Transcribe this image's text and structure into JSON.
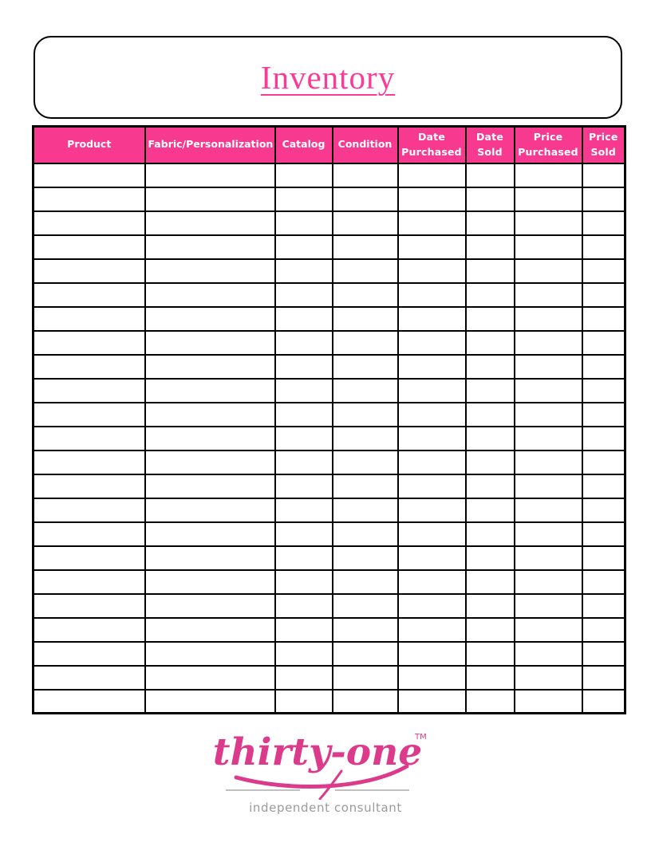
{
  "header": {
    "title": "Inventory"
  },
  "table": {
    "columns": [
      "Product",
      "Fabric/Personalization",
      "Catalog",
      "Condition",
      "Date Purchased",
      "Date Sold",
      "Price Purchased",
      "Price Sold"
    ],
    "row_count": 23,
    "cells_empty": true
  },
  "footer": {
    "brand": "thirty-one",
    "trademark": "TM",
    "tagline": "independent consultant"
  },
  "colors": {
    "header_pink": "#F7398F",
    "title_pink": "#FB3C96",
    "logo_pink": "#DC3A8A",
    "tagline_gray": "#9B9B9B",
    "divider_gray": "#ABABAB"
  }
}
